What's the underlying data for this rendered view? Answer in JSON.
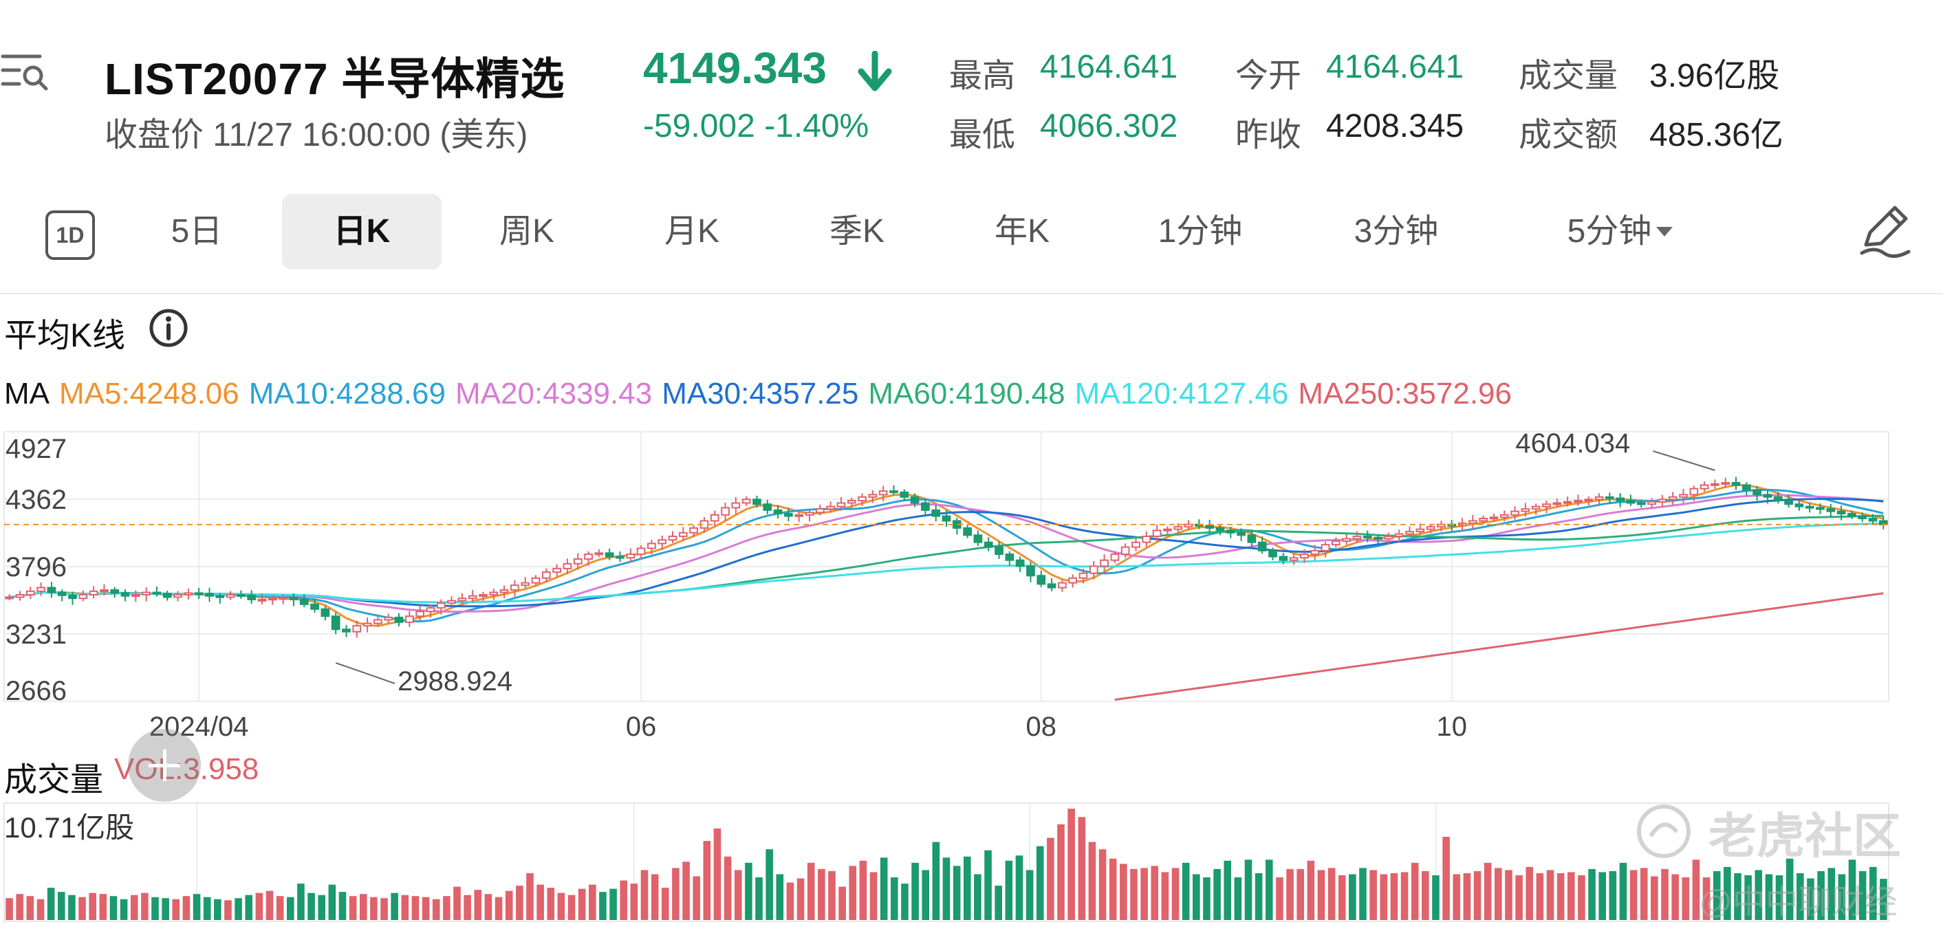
{
  "header": {
    "title": "LIST20077 半导体精选",
    "subtitle": "收盘价 11/27 16:00:00 (美东)",
    "price": "4149.343",
    "change": "-59.002 -1.40%",
    "stats": {
      "high_label": "最高",
      "high": "4164.641",
      "low_label": "最低",
      "low": "4066.302",
      "open_label": "今开",
      "open": "4164.641",
      "prev_close_label": "昨收",
      "prev_close": "4208.345",
      "volume_label": "成交量",
      "volume": "3.96亿股",
      "turnover_label": "成交额",
      "turnover": "485.36亿"
    },
    "colors": {
      "down": "#1a9a6e",
      "up": "#e0626a"
    }
  },
  "tabs": {
    "icon_1d": "1D",
    "items": [
      {
        "label": "5日"
      },
      {
        "label": "日K"
      },
      {
        "label": "周K"
      },
      {
        "label": "月K"
      },
      {
        "label": "季K"
      },
      {
        "label": "年K"
      },
      {
        "label": "1分钟"
      },
      {
        "label": "3分钟"
      },
      {
        "label": "5分钟"
      }
    ],
    "active": "日K"
  },
  "chart": {
    "section_title": "平均K线",
    "ma_label": "MA",
    "ma_items": [
      {
        "text": "MA5:4248.06",
        "color": "#f0922e"
      },
      {
        "text": "MA10:4288.69",
        "color": "#2aa3d6"
      },
      {
        "text": "MA20:4339.43",
        "color": "#d97bd6"
      },
      {
        "text": "MA30:4357.25",
        "color": "#1f6fd0"
      },
      {
        "text": "MA60:4190.48",
        "color": "#2fae7a"
      },
      {
        "text": "MA120:4127.46",
        "color": "#3fe0e8"
      },
      {
        "text": "MA250:3572.96",
        "color": "#e0626a"
      }
    ],
    "volume_label": "成交量",
    "volume_value": "VOL:3.958",
    "volume_max": "10.71亿股"
  },
  "chart_data": {
    "type": "candlestick",
    "ylim": [
      2666,
      4927
    ],
    "y_ticks": [
      "4927",
      "4362",
      "3796",
      "3231",
      "2666"
    ],
    "x_ticks": [
      "2024/04",
      "06",
      "08",
      "10"
    ],
    "x_tick_index": [
      18,
      60,
      98,
      137
    ],
    "last_price": 4149.343,
    "annotations": [
      {
        "text": "4604.034",
        "value": 4604.034,
        "index": 162
      },
      {
        "text": "2988.924",
        "value": 2988.924,
        "index": 31
      }
    ],
    "close_series": [
      3540,
      3560,
      3590,
      3620,
      3580,
      3555,
      3530,
      3560,
      3590,
      3600,
      3575,
      3550,
      3560,
      3580,
      3570,
      3540,
      3560,
      3575,
      3570,
      3550,
      3540,
      3560,
      3555,
      3520,
      3520,
      3530,
      3535,
      3520,
      3480,
      3440,
      3380,
      3270,
      3250,
      3300,
      3320,
      3350,
      3370,
      3330,
      3380,
      3420,
      3450,
      3490,
      3510,
      3530,
      3550,
      3560,
      3580,
      3600,
      3640,
      3660,
      3700,
      3750,
      3780,
      3820,
      3860,
      3900,
      3910,
      3880,
      3870,
      3900,
      3950,
      3990,
      4020,
      4050,
      4080,
      4120,
      4180,
      4230,
      4290,
      4330,
      4360,
      4320,
      4270,
      4240,
      4220,
      4230,
      4250,
      4280,
      4300,
      4330,
      4350,
      4380,
      4400,
      4430,
      4420,
      4380,
      4330,
      4270,
      4220,
      4180,
      4120,
      4060,
      4000,
      3960,
      3900,
      3850,
      3800,
      3720,
      3650,
      3620,
      3660,
      3700,
      3740,
      3800,
      3850,
      3900,
      3960,
      4000,
      4050,
      4100,
      4110,
      4130,
      4150,
      4140,
      4120,
      4100,
      4080,
      4060,
      4000,
      3930,
      3880,
      3850,
      3870,
      3900,
      3930,
      3980,
      4010,
      4030,
      4050,
      4040,
      4030,
      4050,
      4070,
      4090,
      4110,
      4130,
      4150,
      4140,
      4160,
      4180,
      4200,
      4210,
      4230,
      4260,
      4280,
      4300,
      4320,
      4330,
      4340,
      4350,
      4360,
      4380,
      4370,
      4350,
      4330,
      4320,
      4340,
      4360,
      4380,
      4400,
      4450,
      4480,
      4490,
      4500,
      4480,
      4440,
      4400,
      4380,
      4350,
      4320,
      4300,
      4290,
      4280,
      4260,
      4240,
      4220,
      4200,
      4180,
      4149
    ],
    "volume_series": [
      2.1,
      2.5,
      2.3,
      2.0,
      3.1,
      2.7,
      2.4,
      2.2,
      2.6,
      2.5,
      2.3,
      2.0,
      2.4,
      2.6,
      2.2,
      2.1,
      2.0,
      2.3,
      2.5,
      2.2,
      2.0,
      1.9,
      2.1,
      2.4,
      2.6,
      2.8,
      2.3,
      2.2,
      3.5,
      2.6,
      2.4,
      3.4,
      2.7,
      2.3,
      2.5,
      2.2,
      2.1,
      2.6,
      2.4,
      2.3,
      2.2,
      2.0,
      2.3,
      3.2,
      2.4,
      2.9,
      2.5,
      2.2,
      2.8,
      3.3,
      4.5,
      3.4,
      3.1,
      2.6,
      2.4,
      3.0,
      3.4,
      2.7,
      3.0,
      3.8,
      3.5,
      4.8,
      4.4,
      3.1,
      5.0,
      5.6,
      4.2,
      7.6,
      8.8,
      6.1,
      4.8,
      5.5,
      4.1,
      6.8,
      4.4,
      3.6,
      4.0,
      5.5,
      4.9,
      4.7,
      3.2,
      5.2,
      5.7,
      4.6,
      6.0,
      4.1,
      3.5,
      5.5,
      4.8,
      7.5,
      6.0,
      5.2,
      6.1,
      4.4,
      6.7,
      3.3,
      5.7,
      6.2,
      4.8,
      7.1,
      7.9,
      9.2,
      10.7,
      9.9,
      7.5,
      6.8,
      5.9,
      5.4,
      4.9,
      5.0,
      5.2,
      4.6,
      5.0,
      5.5,
      4.4,
      4.1,
      4.9,
      5.7,
      4.1,
      5.8,
      4.5,
      5.8,
      4.1,
      4.9,
      4.9,
      5.7,
      4.8,
      5.0,
      4.3,
      4.4,
      5.0,
      4.8,
      4.4,
      4.5,
      4.6,
      5.5,
      4.7,
      4.3,
      8.0,
      4.4,
      4.5,
      4.7,
      5.5,
      5.0,
      4.8,
      4.3,
      5.1,
      4.5,
      4.8,
      4.5,
      4.6,
      4.3,
      4.9,
      4.6,
      4.7,
      5.5,
      4.8,
      5.0,
      4.2,
      4.9,
      4.4,
      4.1,
      5.8,
      4.1,
      4.7,
      5.1,
      4.5,
      4.3,
      4.8,
      4.4,
      4.3,
      5.9,
      4.5,
      4.0,
      4.7,
      5.0,
      4.4,
      5.8,
      4.7,
      5.1,
      3.96
    ],
    "ma_series_names": [
      "MA5",
      "MA10",
      "MA20",
      "MA30",
      "MA60",
      "MA120",
      "MA250"
    ]
  },
  "watermark": {
    "brand": "老虎社区",
    "handle": "@中中聊财经"
  }
}
